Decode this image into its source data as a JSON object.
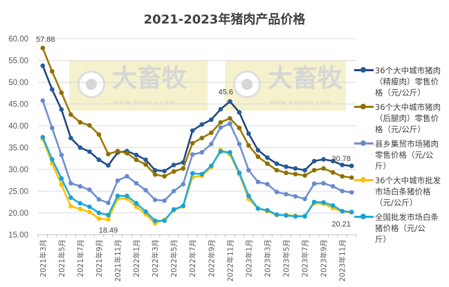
{
  "chart_data": {
    "type": "line",
    "title": "2021-2023年猪肉产品价格",
    "xlabel": "",
    "ylabel": "",
    "ylim": [
      15,
      60
    ],
    "yticks": [
      "15.00",
      "20.00",
      "25.00",
      "30.00",
      "35.00",
      "40.00",
      "45.00",
      "50.00",
      "55.00",
      "60.00"
    ],
    "grid": true,
    "legend_position": "right",
    "categories": [
      "2021年3月",
      "2021年4月",
      "2021年5月",
      "2021年6月",
      "2021年7月",
      "2021年8月",
      "2021年9月",
      "2021年10月",
      "2021年11月",
      "2021年12月",
      "2022年1月",
      "2022年2月",
      "2022年3月",
      "2022年4月",
      "2022年5月",
      "2022年6月",
      "2022年7月",
      "2022年8月",
      "2022年9月",
      "2022年10月",
      "2022年11月",
      "2022年12月",
      "2023年1月",
      "2023年2月",
      "2023年3月",
      "2023年4月",
      "2023年5月",
      "2023年6月",
      "2023年7月",
      "2023年8月",
      "2023年9月",
      "2023年10月",
      "2023年11月",
      "2023年12月"
    ],
    "tick_labels": [
      "2021年3月",
      "2021年5月",
      "2021年7月",
      "2021年9月",
      "2021年11月",
      "2022年1月",
      "2022年3月",
      "2022年5月",
      "2022年7月",
      "2022年9月",
      "2022年11月",
      "2023年1月",
      "2023年3月",
      "2023年5月",
      "2023年7月",
      "2023年9月",
      "2023年11月"
    ],
    "series": [
      {
        "name": "36个大中城市猪肉（精瘦肉）零售价格（元/公斤）",
        "color": "#264478",
        "marker_color": "#1f5c9e",
        "values": [
          53.8,
          48.35,
          43.75,
          37.2,
          35.0,
          34.06,
          32.2,
          30.9,
          33.85,
          34.2,
          33.3,
          32.2,
          29.8,
          29.6,
          31.0,
          31.6,
          38.9,
          40.3,
          41.4,
          43.8,
          45.6,
          43.1,
          38.2,
          34.4,
          32.7,
          31.3,
          30.6,
          30.2,
          29.8,
          31.9,
          32.3,
          31.9,
          31.0,
          30.78
        ]
      },
      {
        "name": "36个大中城市猪肉（后腿肉）零售价格（元/公斤）",
        "color": "#9c7a00",
        "marker_color": "#8f6f00",
        "values": [
          57.88,
          52.5,
          47.6,
          42.6,
          40.8,
          40.1,
          38.0,
          33.5,
          34.2,
          33.7,
          32.2,
          31.1,
          28.8,
          28.4,
          29.5,
          30.2,
          36.0,
          37.2,
          38.4,
          40.8,
          41.7,
          39.5,
          35.5,
          32.9,
          31.3,
          29.8,
          29.2,
          28.9,
          28.6,
          29.8,
          30.2,
          29.3,
          28.4,
          28.1
        ]
      },
      {
        "name": "县乡集贸市场猪肉零售价格（元/公斤）",
        "color": "#6f8fcf",
        "marker_color": "#6a8bcc",
        "values": [
          45.8,
          39.5,
          33.3,
          26.8,
          26.1,
          25.3,
          23.1,
          22.3,
          27.4,
          28.4,
          26.8,
          25.2,
          23.0,
          22.8,
          25.0,
          26.6,
          33.4,
          33.9,
          35.8,
          39.6,
          40.5,
          35.8,
          29.8,
          27.1,
          26.6,
          24.8,
          24.3,
          23.8,
          23.2,
          26.7,
          26.8,
          26.1,
          25.0,
          24.7
        ]
      },
      {
        "name": "36个大中城市批发市场白条猪价格（元/公斤）",
        "color": "#ffc000",
        "marker_color": "#ffc000",
        "values": [
          37.0,
          31.4,
          26.5,
          21.5,
          20.9,
          20.2,
          18.7,
          18.49,
          23.3,
          23.3,
          21.4,
          19.7,
          17.6,
          18.4,
          20.6,
          21.5,
          28.2,
          28.5,
          30.5,
          34.5,
          33.4,
          28.9,
          23.2,
          21.0,
          20.4,
          19.5,
          19.5,
          19.3,
          19.3,
          22.2,
          22.1,
          21.1,
          20.3,
          20.1
        ]
      },
      {
        "name": "全国批发市场白条猪价格（元/公斤）",
        "color": "#17b0e0",
        "marker_color": "#1ba1d6",
        "values": [
          37.4,
          32.3,
          27.9,
          23.5,
          22.2,
          21.4,
          20.0,
          19.5,
          23.9,
          23.9,
          22.2,
          20.3,
          18.2,
          18.2,
          20.8,
          21.6,
          29.1,
          28.9,
          30.8,
          34.1,
          33.9,
          29.2,
          23.9,
          21.0,
          20.6,
          19.6,
          19.4,
          19.2,
          19.2,
          22.5,
          22.4,
          21.7,
          20.4,
          20.21
        ]
      }
    ],
    "data_labels": [
      {
        "series": 1,
        "index": 0,
        "text": "57.88"
      },
      {
        "series": 3,
        "index": 7,
        "text": "18.49"
      },
      {
        "series": 0,
        "index": 20,
        "text": "45.6"
      },
      {
        "series": 0,
        "index": 33,
        "text": "30.78"
      },
      {
        "series": 4,
        "index": 33,
        "text": "20.21"
      }
    ],
    "legend": [
      [
        "36个大中城市猪肉",
        "（精瘦肉）零售价",
        "格（元/公斤）"
      ],
      [
        "36个大中城市猪肉",
        "（后腿肉）零售价",
        "格（元/公斤）"
      ],
      [
        "县乡集贸市场猪肉",
        "零售价格（元/公",
        "斤）"
      ],
      [
        "36个大中城市批发",
        "市场白条猪价格",
        "（元/公斤）"
      ],
      [
        "全国批发市场白条",
        "猪价格（元/公",
        "斤）"
      ]
    ]
  },
  "watermark": {
    "text": "大畜牧",
    "url": "www.dxumu.com"
  }
}
